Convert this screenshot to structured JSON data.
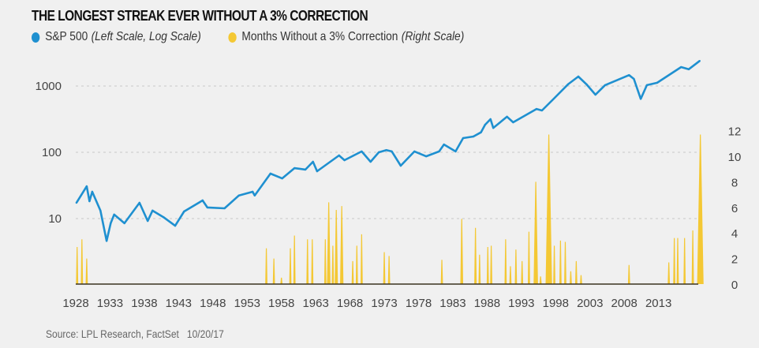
{
  "chart_data": {
    "type": "line",
    "title": "THE LONGEST STREAK EVER WITHOUT A 3% CORRECTION",
    "source": "Source: LPL Research, FactSet",
    "date": "10/20/17",
    "colors": {
      "sp500": "#1f90d0",
      "months": "#f4c834",
      "baseline": "#3a3320",
      "grid": "#c8c8c8"
    },
    "x_ticks": [
      "1928",
      "1933",
      "1938",
      "1943",
      "1948",
      "1953",
      "1958",
      "1963",
      "1968",
      "1973",
      "1978",
      "1983",
      "1988",
      "1993",
      "1998",
      "2003",
      "2008",
      "2013"
    ],
    "left_axis": {
      "scale": "log",
      "ticks": [
        "10",
        "100",
        "1000"
      ],
      "tick_values": [
        10,
        100,
        1000
      ]
    },
    "right_axis": {
      "scale": "linear",
      "ticks": [
        "0",
        "2",
        "4",
        "6",
        "8",
        "10",
        "12"
      ],
      "tick_values": [
        0,
        2,
        4,
        6,
        8,
        10,
        12
      ],
      "range": [
        0,
        12
      ]
    },
    "series": [
      {
        "name": "S&P 500",
        "name_suffix": "(Left Scale, Log Scale)",
        "axis": "left",
        "points": [
          [
            1928.1,
            17.3
          ],
          [
            1929.6,
            30.7
          ],
          [
            1930.0,
            18.3
          ],
          [
            1930.4,
            25.4
          ],
          [
            1931.6,
            13.2
          ],
          [
            1932.5,
            4.6
          ],
          [
            1933.1,
            8.5
          ],
          [
            1933.6,
            11.5
          ],
          [
            1935.1,
            8.5
          ],
          [
            1937.3,
            17.3
          ],
          [
            1938.5,
            9.2
          ],
          [
            1939.2,
            13.2
          ],
          [
            1940.8,
            10.5
          ],
          [
            1942.5,
            7.8
          ],
          [
            1943.8,
            12.8
          ],
          [
            1946.5,
            18.8
          ],
          [
            1947.2,
            14.7
          ],
          [
            1949.7,
            14.3
          ],
          [
            1951.8,
            22.3
          ],
          [
            1953.8,
            25.4
          ],
          [
            1954.1,
            22.3
          ],
          [
            1956.4,
            47.7
          ],
          [
            1958.1,
            40.4
          ],
          [
            1959.9,
            57.7
          ],
          [
            1961.5,
            54.9
          ],
          [
            1962.6,
            72
          ],
          [
            1963.2,
            51.8
          ],
          [
            1966.4,
            89.7
          ],
          [
            1967.2,
            76
          ],
          [
            1969.7,
            103
          ],
          [
            1971.0,
            72
          ],
          [
            1972.2,
            100
          ],
          [
            1973.3,
            108
          ],
          [
            1974.1,
            103
          ],
          [
            1975.4,
            62.7
          ],
          [
            1977.4,
            103
          ],
          [
            1979.1,
            87
          ],
          [
            1981.0,
            103
          ],
          [
            1981.7,
            131
          ],
          [
            1983.4,
            103
          ],
          [
            1984.5,
            164
          ],
          [
            1986.0,
            173
          ],
          [
            1987.1,
            200
          ],
          [
            1987.7,
            260
          ],
          [
            1988.5,
            316
          ],
          [
            1988.9,
            233
          ],
          [
            1990.9,
            344
          ],
          [
            1991.8,
            283
          ],
          [
            1995.2,
            450
          ],
          [
            1996.0,
            428
          ],
          [
            1997.5,
            610
          ],
          [
            1999.8,
            1060
          ],
          [
            2001.3,
            1390
          ],
          [
            2002.5,
            1060
          ],
          [
            2003.8,
            740
          ],
          [
            2005.2,
            1030
          ],
          [
            2008.7,
            1460
          ],
          [
            2009.4,
            1280
          ],
          [
            2010.4,
            640
          ],
          [
            2011.3,
            1030
          ],
          [
            2012.8,
            1120
          ],
          [
            2016.3,
            1930
          ],
          [
            2017.4,
            1790
          ],
          [
            2019.0,
            2390
          ]
        ]
      },
      {
        "name": "Months Without a 3% Correction",
        "name_suffix": "(Right Scale)",
        "axis": "right",
        "points": [
          [
            1928.2,
            2.9
          ],
          [
            1928.9,
            3.5
          ],
          [
            1929.6,
            2.0
          ],
          [
            1955.8,
            2.8
          ],
          [
            1956.9,
            2.0
          ],
          [
            1958.0,
            0.5
          ],
          [
            1959.3,
            2.8
          ],
          [
            1959.9,
            3.8
          ],
          [
            1961.8,
            3.5
          ],
          [
            1962.5,
            3.5
          ],
          [
            1964.4,
            3.5
          ],
          [
            1964.9,
            6.4
          ],
          [
            1965.5,
            3.0
          ],
          [
            1966.0,
            5.8
          ],
          [
            1966.8,
            6.1
          ],
          [
            1968.4,
            1.8
          ],
          [
            1969.0,
            3.0
          ],
          [
            1969.7,
            3.9
          ],
          [
            1973.0,
            2.5
          ],
          [
            1973.7,
            2.2
          ],
          [
            1981.4,
            1.9
          ],
          [
            1984.3,
            5.1
          ],
          [
            1986.3,
            4.4
          ],
          [
            1986.9,
            2.3
          ],
          [
            1988.1,
            2.9
          ],
          [
            1988.6,
            3.0
          ],
          [
            1990.7,
            3.5
          ],
          [
            1991.4,
            1.4
          ],
          [
            1992.2,
            2.7
          ],
          [
            1993.1,
            1.8
          ],
          [
            1994.1,
            4.1
          ],
          [
            1995.1,
            8.0
          ],
          [
            1995.8,
            0.6
          ],
          [
            1997.0,
            11.7
          ],
          [
            1997.8,
            3.0
          ],
          [
            1998.7,
            3.4
          ],
          [
            1999.4,
            3.3
          ],
          [
            2000.2,
            1.0
          ],
          [
            2001.0,
            1.8
          ],
          [
            2001.7,
            0.7
          ],
          [
            2008.7,
            1.5
          ],
          [
            2014.5,
            1.7
          ],
          [
            2015.3,
            3.6
          ],
          [
            2015.8,
            3.6
          ],
          [
            2016.8,
            3.6
          ],
          [
            2018.0,
            4.2
          ],
          [
            2019.1,
            11.7
          ]
        ]
      }
    ]
  }
}
